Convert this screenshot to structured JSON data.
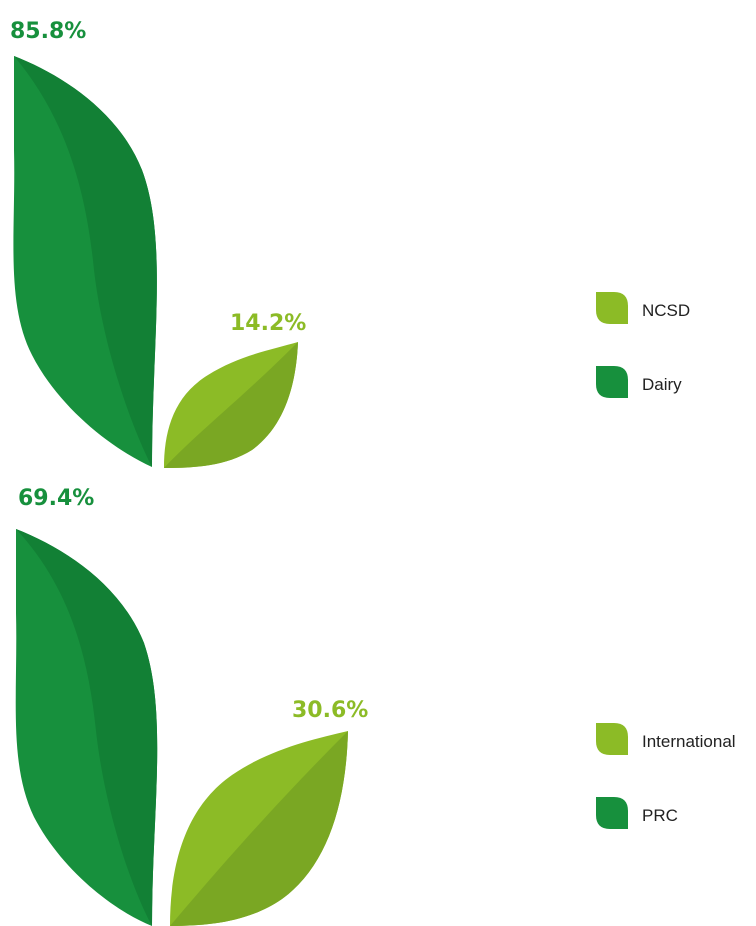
{
  "colors": {
    "dark_green": "#17903d",
    "dark_green_shade": "#128035",
    "light_green": "#8cbb26",
    "light_green_shade": "#7aa723"
  },
  "chart_data": [
    {
      "type": "pie",
      "labels": [
        "Dairy",
        "NCSD"
      ],
      "values": [
        85.8,
        14.2
      ],
      "data_labels": [
        "85.8%",
        "14.2%"
      ],
      "legend": [
        "NCSD",
        "Dairy"
      ],
      "legend_placement": "right"
    },
    {
      "type": "pie",
      "labels": [
        "PRC",
        "International"
      ],
      "values": [
        69.4,
        30.6
      ],
      "data_labels": [
        "69.4%",
        "30.6%"
      ],
      "legend": [
        "International",
        "PRC"
      ],
      "legend_placement": "right"
    }
  ]
}
